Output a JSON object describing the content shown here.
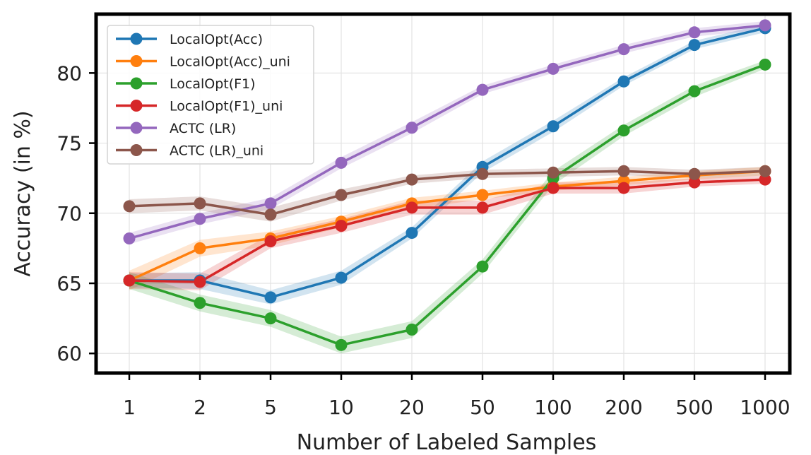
{
  "chart_data": {
    "type": "line",
    "title": "",
    "xlabel": "Number of Labeled Samples",
    "ylabel": "Accuracy (in %)",
    "x_scale": "categorical",
    "categories": [
      "1",
      "2",
      "5",
      "10",
      "20",
      "50",
      "100",
      "200",
      "500",
      "1000"
    ],
    "yticks": [
      60,
      65,
      70,
      75,
      80
    ],
    "ylim": [
      58.6,
      84.2
    ],
    "grid": true,
    "legend_position": "top-left",
    "series": [
      {
        "name": "LocalOpt(Acc)",
        "color": "#1f77b4",
        "values": [
          65.2,
          65.2,
          64.0,
          65.4,
          68.6,
          73.3,
          76.2,
          79.4,
          82.0,
          83.2
        ],
        "band": [
          0.5,
          0.6,
          0.5,
          0.5,
          0.4,
          0.4,
          0.4,
          0.3,
          0.3,
          0.3
        ]
      },
      {
        "name": "LocalOpt(Acc)_uni",
        "color": "#ff7f0e",
        "values": [
          65.2,
          67.5,
          68.2,
          69.4,
          70.7,
          71.3,
          71.9,
          72.3,
          72.7,
          73.0
        ],
        "band": [
          0.7,
          0.6,
          0.5,
          0.4,
          0.4,
          0.3,
          0.3,
          0.3,
          0.3,
          0.3
        ]
      },
      {
        "name": "LocalOpt(F1)",
        "color": "#2ca02c",
        "values": [
          65.2,
          63.6,
          62.5,
          60.6,
          61.7,
          66.2,
          72.5,
          75.9,
          78.7,
          80.6
        ],
        "band": [
          0.6,
          0.6,
          0.6,
          0.6,
          0.6,
          0.5,
          0.5,
          0.4,
          0.4,
          0.3
        ]
      },
      {
        "name": "LocalOpt(F1)_uni",
        "color": "#d62728",
        "values": [
          65.2,
          65.1,
          68.0,
          69.1,
          70.4,
          70.4,
          71.8,
          71.8,
          72.2,
          72.4
        ],
        "band": [
          0.6,
          0.6,
          0.5,
          0.5,
          0.5,
          0.5,
          0.4,
          0.4,
          0.3,
          0.3
        ]
      },
      {
        "name": "ACTC (LR)",
        "color": "#9467bd",
        "values": [
          68.2,
          69.6,
          70.7,
          73.6,
          76.1,
          78.8,
          80.3,
          81.7,
          82.9,
          83.4
        ],
        "band": [
          0.4,
          0.4,
          0.4,
          0.4,
          0.4,
          0.3,
          0.3,
          0.3,
          0.3,
          0.3
        ]
      },
      {
        "name": "ACTC (LR)_uni",
        "color": "#8c564b",
        "values": [
          70.5,
          70.7,
          69.9,
          71.3,
          72.4,
          72.8,
          72.9,
          73.0,
          72.8,
          73.0
        ],
        "band": [
          0.5,
          0.5,
          0.5,
          0.4,
          0.3,
          0.3,
          0.3,
          0.3,
          0.3,
          0.3
        ]
      }
    ]
  }
}
